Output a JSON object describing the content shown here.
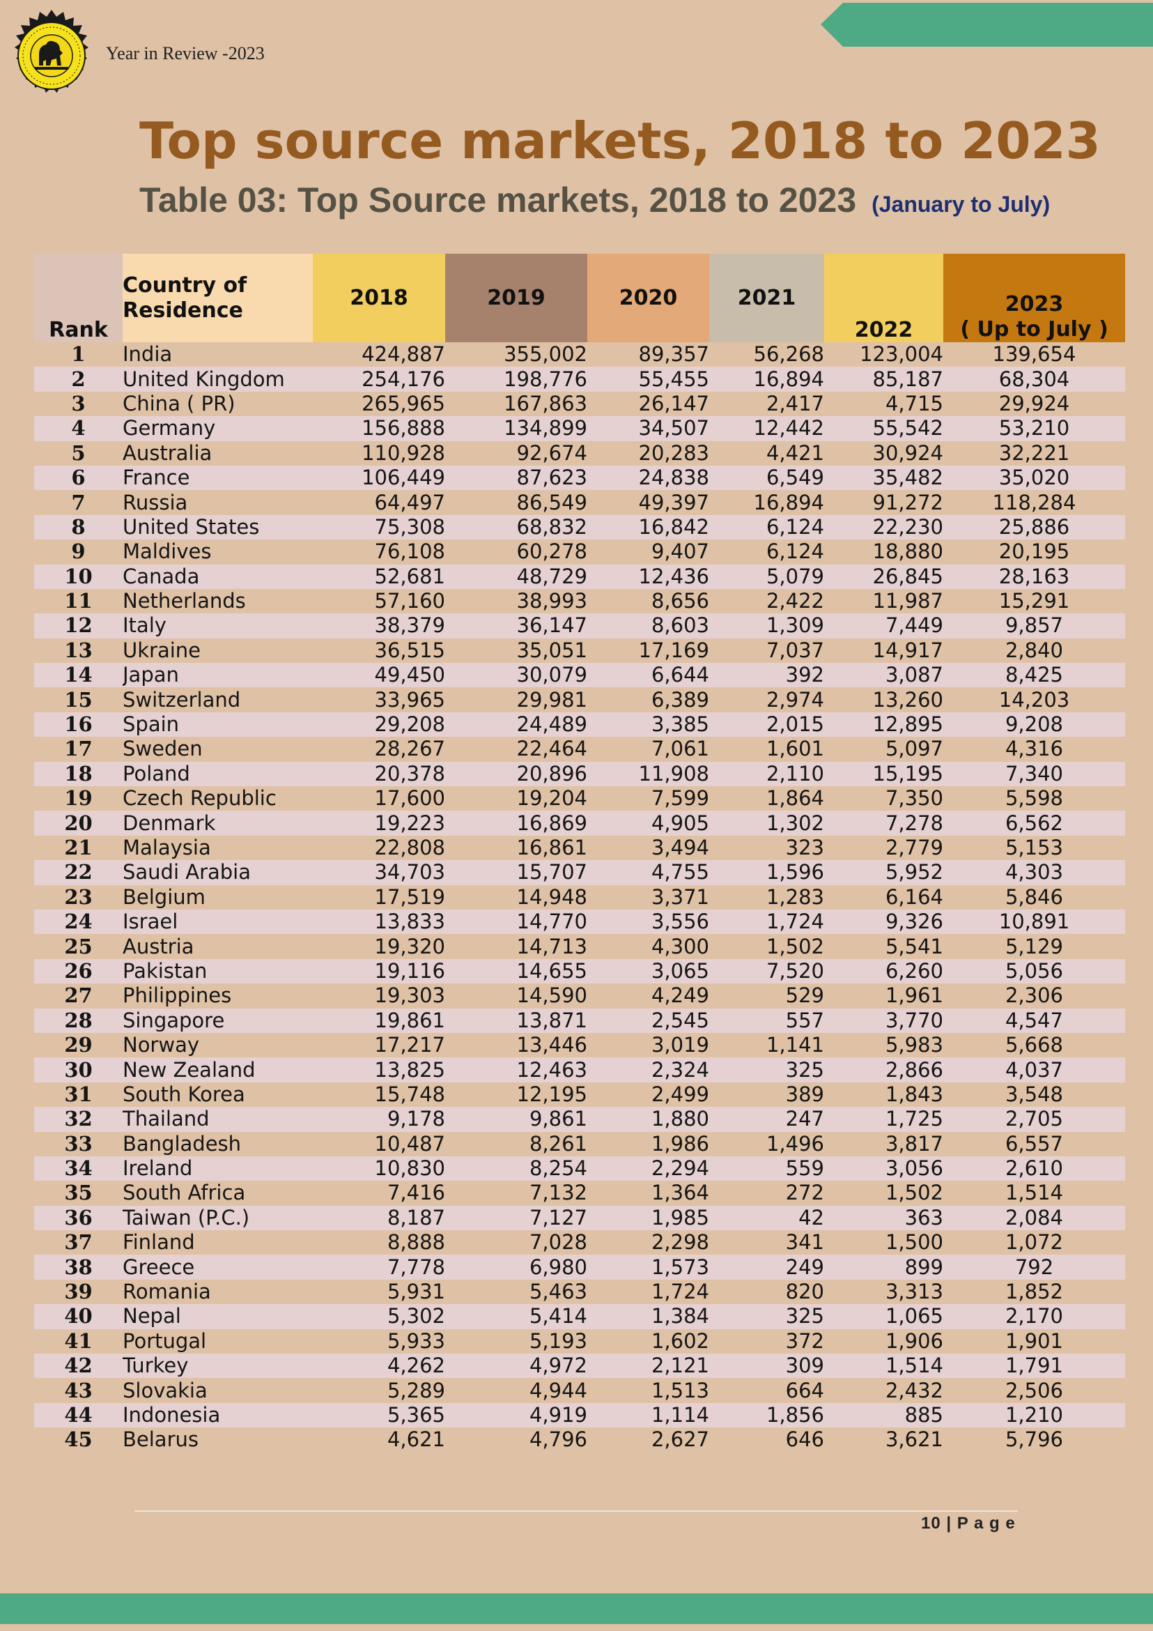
{
  "header": {
    "text": "Year in Review -2023"
  },
  "colors": {
    "title": "#955a20",
    "subtitle": "#555245",
    "accent_note": "#1d2f72",
    "ribbon": "#4eaa84",
    "page_bg": "#dfc1a6"
  },
  "main_title": "Top source markets, 2018 to 2023",
  "subtitle": {
    "main": "Table 03: Top Source markets, 2018 to 2023",
    "note": "(January to July)"
  },
  "table": {
    "headers": {
      "rank": "Rank",
      "country_line1": "Country of",
      "country_line2": "Residence",
      "y2018": "2018",
      "y2019": "2019",
      "y2020": "2020",
      "y2021": "2021",
      "y2022": "2022",
      "y2023_line1": "2023",
      "y2023_line2": "( Up to July )"
    },
    "rows": [
      {
        "rank": "1",
        "country": "India",
        "v2018": "424,887",
        "v2019": "355,002",
        "v2020": "89,357",
        "v2021": "56,268",
        "v2022": "123,004",
        "v2023": "139,654"
      },
      {
        "rank": "2",
        "country": "United Kingdom",
        "v2018": "254,176",
        "v2019": "198,776",
        "v2020": "55,455",
        "v2021": "16,894",
        "v2022": "85,187",
        "v2023": "68,304"
      },
      {
        "rank": "3",
        "country": "China ( PR)",
        "v2018": "265,965",
        "v2019": "167,863",
        "v2020": "26,147",
        "v2021": "2,417",
        "v2022": "4,715",
        "v2023": "29,924"
      },
      {
        "rank": "4",
        "country": "Germany",
        "v2018": "156,888",
        "v2019": "134,899",
        "v2020": "34,507",
        "v2021": "12,442",
        "v2022": "55,542",
        "v2023": "53,210"
      },
      {
        "rank": "5",
        "country": "Australia",
        "v2018": "110,928",
        "v2019": "92,674",
        "v2020": "20,283",
        "v2021": "4,421",
        "v2022": "30,924",
        "v2023": "32,221"
      },
      {
        "rank": "6",
        "country": "France",
        "v2018": "106,449",
        "v2019": "87,623",
        "v2020": "24,838",
        "v2021": "6,549",
        "v2022": "35,482",
        "v2023": "35,020"
      },
      {
        "rank": "7",
        "country": "Russia",
        "v2018": "64,497",
        "v2019": "86,549",
        "v2020": "49,397",
        "v2021": "16,894",
        "v2022": "91,272",
        "v2023": "118,284"
      },
      {
        "rank": "8",
        "country": "United States",
        "v2018": "75,308",
        "v2019": "68,832",
        "v2020": "16,842",
        "v2021": "6,124",
        "v2022": "22,230",
        "v2023": "25,886"
      },
      {
        "rank": "9",
        "country": "Maldives",
        "v2018": "76,108",
        "v2019": "60,278",
        "v2020": "9,407",
        "v2021": "6,124",
        "v2022": "18,880",
        "v2023": "20,195"
      },
      {
        "rank": "10",
        "country": "Canada",
        "v2018": "52,681",
        "v2019": "48,729",
        "v2020": "12,436",
        "v2021": "5,079",
        "v2022": "26,845",
        "v2023": "28,163"
      },
      {
        "rank": "11",
        "country": "Netherlands",
        "v2018": "57,160",
        "v2019": "38,993",
        "v2020": "8,656",
        "v2021": "2,422",
        "v2022": "11,987",
        "v2023": "15,291"
      },
      {
        "rank": "12",
        "country": "Italy",
        "v2018": "38,379",
        "v2019": "36,147",
        "v2020": "8,603",
        "v2021": "1,309",
        "v2022": "7,449",
        "v2023": "9,857"
      },
      {
        "rank": "13",
        "country": "Ukraine",
        "v2018": "36,515",
        "v2019": "35,051",
        "v2020": "17,169",
        "v2021": "7,037",
        "v2022": "14,917",
        "v2023": "2,840"
      },
      {
        "rank": "14",
        "country": "Japan",
        "v2018": "49,450",
        "v2019": "30,079",
        "v2020": "6,644",
        "v2021": "392",
        "v2022": "3,087",
        "v2023": "8,425"
      },
      {
        "rank": "15",
        "country": "Switzerland",
        "v2018": "33,965",
        "v2019": "29,981",
        "v2020": "6,389",
        "v2021": "2,974",
        "v2022": "13,260",
        "v2023": "14,203"
      },
      {
        "rank": "16",
        "country": "Spain",
        "v2018": "29,208",
        "v2019": "24,489",
        "v2020": "3,385",
        "v2021": "2,015",
        "v2022": "12,895",
        "v2023": "9,208"
      },
      {
        "rank": "17",
        "country": "Sweden",
        "v2018": "28,267",
        "v2019": "22,464",
        "v2020": "7,061",
        "v2021": "1,601",
        "v2022": "5,097",
        "v2023": "4,316"
      },
      {
        "rank": "18",
        "country": "Poland",
        "v2018": "20,378",
        "v2019": "20,896",
        "v2020": "11,908",
        "v2021": "2,110",
        "v2022": "15,195",
        "v2023": "7,340"
      },
      {
        "rank": "19",
        "country": "Czech Republic",
        "v2018": "17,600",
        "v2019": "19,204",
        "v2020": "7,599",
        "v2021": "1,864",
        "v2022": "7,350",
        "v2023": "5,598"
      },
      {
        "rank": "20",
        "country": "Denmark",
        "v2018": "19,223",
        "v2019": "16,869",
        "v2020": "4,905",
        "v2021": "1,302",
        "v2022": "7,278",
        "v2023": "6,562"
      },
      {
        "rank": "21",
        "country": "Malaysia",
        "v2018": "22,808",
        "v2019": "16,861",
        "v2020": "3,494",
        "v2021": "323",
        "v2022": "2,779",
        "v2023": "5,153"
      },
      {
        "rank": "22",
        "country": "Saudi Arabia",
        "v2018": "34,703",
        "v2019": "15,707",
        "v2020": "4,755",
        "v2021": "1,596",
        "v2022": "5,952",
        "v2023": "4,303"
      },
      {
        "rank": "23",
        "country": "Belgium",
        "v2018": "17,519",
        "v2019": "14,948",
        "v2020": "3,371",
        "v2021": "1,283",
        "v2022": "6,164",
        "v2023": "5,846"
      },
      {
        "rank": "24",
        "country": "Israel",
        "v2018": "13,833",
        "v2019": "14,770",
        "v2020": "3,556",
        "v2021": "1,724",
        "v2022": "9,326",
        "v2023": "10,891"
      },
      {
        "rank": "25",
        "country": "Austria",
        "v2018": "19,320",
        "v2019": "14,713",
        "v2020": "4,300",
        "v2021": "1,502",
        "v2022": "5,541",
        "v2023": "5,129"
      },
      {
        "rank": "26",
        "country": "Pakistan",
        "v2018": "19,116",
        "v2019": "14,655",
        "v2020": "3,065",
        "v2021": "7,520",
        "v2022": "6,260",
        "v2023": "5,056"
      },
      {
        "rank": "27",
        "country": "Philippines",
        "v2018": "19,303",
        "v2019": "14,590",
        "v2020": "4,249",
        "v2021": "529",
        "v2022": "1,961",
        "v2023": "2,306"
      },
      {
        "rank": "28",
        "country": "Singapore",
        "v2018": "19,861",
        "v2019": "13,871",
        "v2020": "2,545",
        "v2021": "557",
        "v2022": "3,770",
        "v2023": "4,547"
      },
      {
        "rank": "29",
        "country": "Norway",
        "v2018": "17,217",
        "v2019": "13,446",
        "v2020": "3,019",
        "v2021": "1,141",
        "v2022": "5,983",
        "v2023": "5,668"
      },
      {
        "rank": "30",
        "country": "New Zealand",
        "v2018": "13,825",
        "v2019": "12,463",
        "v2020": "2,324",
        "v2021": "325",
        "v2022": "2,866",
        "v2023": "4,037"
      },
      {
        "rank": "31",
        "country": "South Korea",
        "v2018": "15,748",
        "v2019": "12,195",
        "v2020": "2,499",
        "v2021": "389",
        "v2022": "1,843",
        "v2023": "3,548"
      },
      {
        "rank": "32",
        "country": "Thailand",
        "v2018": "9,178",
        "v2019": "9,861",
        "v2020": "1,880",
        "v2021": "247",
        "v2022": "1,725",
        "v2023": "2,705"
      },
      {
        "rank": "33",
        "country": "Bangladesh",
        "v2018": "10,487",
        "v2019": "8,261",
        "v2020": "1,986",
        "v2021": "1,496",
        "v2022": "3,817",
        "v2023": "6,557"
      },
      {
        "rank": "34",
        "country": "Ireland",
        "v2018": "10,830",
        "v2019": "8,254",
        "v2020": "2,294",
        "v2021": "559",
        "v2022": "3,056",
        "v2023": "2,610"
      },
      {
        "rank": "35",
        "country": "South Africa",
        "v2018": "7,416",
        "v2019": "7,132",
        "v2020": "1,364",
        "v2021": "272",
        "v2022": "1,502",
        "v2023": "1,514"
      },
      {
        "rank": "36",
        "country": "Taiwan (P.C.)",
        "v2018": "8,187",
        "v2019": "7,127",
        "v2020": "1,985",
        "v2021": "42",
        "v2022": "363",
        "v2023": "2,084"
      },
      {
        "rank": "37",
        "country": "Finland",
        "v2018": "8,888",
        "v2019": "7,028",
        "v2020": "2,298",
        "v2021": "341",
        "v2022": "1,500",
        "v2023": "1,072"
      },
      {
        "rank": "38",
        "country": "Greece",
        "v2018": "7,778",
        "v2019": "6,980",
        "v2020": "1,573",
        "v2021": "249",
        "v2022": "899",
        "v2023": "792"
      },
      {
        "rank": "39",
        "country": "Romania",
        "v2018": "5,931",
        "v2019": "5,463",
        "v2020": "1,724",
        "v2021": "820",
        "v2022": "3,313",
        "v2023": "1,852"
      },
      {
        "rank": "40",
        "country": "Nepal",
        "v2018": "5,302",
        "v2019": "5,414",
        "v2020": "1,384",
        "v2021": "325",
        "v2022": "1,065",
        "v2023": "2,170"
      },
      {
        "rank": "41",
        "country": "Portugal",
        "v2018": "5,933",
        "v2019": "5,193",
        "v2020": "1,602",
        "v2021": "372",
        "v2022": "1,906",
        "v2023": "1,901"
      },
      {
        "rank": "42",
        "country": "Turkey",
        "v2018": "4,262",
        "v2019": "4,972",
        "v2020": "2,121",
        "v2021": "309",
        "v2022": "1,514",
        "v2023": "1,791"
      },
      {
        "rank": "43",
        "country": "Slovakia",
        "v2018": "5,289",
        "v2019": "4,944",
        "v2020": "1,513",
        "v2021": "664",
        "v2022": "2,432",
        "v2023": "2,506"
      },
      {
        "rank": "44",
        "country": "Indonesia",
        "v2018": "5,365",
        "v2019": "4,919",
        "v2020": "1,114",
        "v2021": "1,856",
        "v2022": "885",
        "v2023": "1,210"
      },
      {
        "rank": "45",
        "country": "Belarus",
        "v2018": "4,621",
        "v2019": "4,796",
        "v2020": "2,627",
        "v2021": "646",
        "v2022": "3,621",
        "v2023": "5,796"
      }
    ]
  },
  "footer": {
    "page_number": "10 | P a g e"
  }
}
